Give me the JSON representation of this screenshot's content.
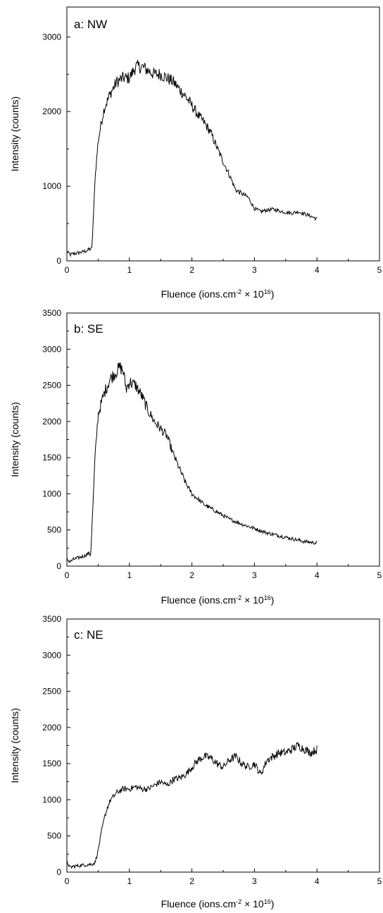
{
  "chart_data": [
    {
      "type": "line",
      "title": "a: NW",
      "xlabel": "Fluence (ions.cm",
      "xlabel_exp": "-2",
      "xlabel_mid": " × 10",
      "xlabel_exp2": "16",
      "xlabel_end": ")",
      "ylabel": "Intensity (counts)",
      "xlim": [
        0,
        5
      ],
      "ylim": [
        0,
        3400
      ],
      "xticks": [
        "0",
        "1",
        "2",
        "3",
        "4",
        "5"
      ],
      "yticks": [
        "0",
        "1000",
        "2000",
        "3000"
      ],
      "x": [
        0,
        0.05,
        0.1,
        0.2,
        0.3,
        0.35,
        0.4,
        0.43,
        0.45,
        0.5,
        0.55,
        0.6,
        0.7,
        0.8,
        0.9,
        1.0,
        1.1,
        1.2,
        1.3,
        1.4,
        1.5,
        1.6,
        1.7,
        1.8,
        1.9,
        2.0,
        2.1,
        2.2,
        2.3,
        2.4,
        2.5,
        2.6,
        2.7,
        2.8,
        2.9,
        3.0,
        3.1,
        3.2,
        3.3,
        3.4,
        3.5,
        3.6,
        3.7,
        3.8,
        3.9,
        4.0
      ],
      "series": [
        {
          "values": [
            130,
            80,
            95,
            110,
            130,
            150,
            170,
            700,
            1100,
            1600,
            1850,
            2050,
            2250,
            2400,
            2450,
            2450,
            2600,
            2600,
            2550,
            2500,
            2500,
            2450,
            2400,
            2300,
            2200,
            2080,
            1950,
            1850,
            1720,
            1520,
            1330,
            1150,
            950,
            900,
            850,
            700,
            660,
            680,
            690,
            670,
            650,
            640,
            660,
            630,
            600,
            560
          ]
        }
      ]
    },
    {
      "type": "line",
      "title": "b: SE",
      "xlabel": "Fluence (ions.cm",
      "xlabel_exp": "-2",
      "xlabel_mid": " × 10",
      "xlabel_exp2": "16",
      "xlabel_end": ")",
      "ylabel": "Intensity (counts)",
      "xlim": [
        0,
        5
      ],
      "ylim": [
        0,
        3500
      ],
      "xticks": [
        "0",
        "1",
        "2",
        "3",
        "4",
        "5"
      ],
      "yticks": [
        "0",
        "500",
        "1000",
        "1500",
        "2000",
        "2500",
        "3000",
        "3500"
      ],
      "x": [
        0,
        0.05,
        0.1,
        0.2,
        0.3,
        0.35,
        0.38,
        0.42,
        0.45,
        0.5,
        0.55,
        0.6,
        0.7,
        0.8,
        0.85,
        0.9,
        0.95,
        1.0,
        1.1,
        1.2,
        1.3,
        1.4,
        1.5,
        1.6,
        1.7,
        1.8,
        1.9,
        2.0,
        2.2,
        2.4,
        2.6,
        2.8,
        3.0,
        3.2,
        3.4,
        3.6,
        3.8,
        4.0
      ],
      "series": [
        {
          "values": [
            100,
            60,
            90,
            120,
            150,
            180,
            150,
            900,
            1500,
            2100,
            2250,
            2400,
            2600,
            2700,
            2750,
            2700,
            2450,
            2550,
            2500,
            2350,
            2150,
            2000,
            1900,
            1800,
            1550,
            1350,
            1150,
            1000,
            850,
            750,
            650,
            580,
            520,
            460,
            420,
            380,
            340,
            320
          ]
        }
      ]
    },
    {
      "type": "line",
      "title": "c: NE",
      "xlabel": "Fluence (ions.cm",
      "xlabel_exp": "-2",
      "xlabel_mid": " × 10",
      "xlabel_exp2": "16",
      "xlabel_end": ")",
      "ylabel": "Intensity (counts)",
      "xlim": [
        0,
        5
      ],
      "ylim": [
        0,
        3500
      ],
      "xticks": [
        "0",
        "1",
        "2",
        "3",
        "4",
        "5"
      ],
      "yticks": [
        "0",
        "500",
        "1000",
        "1500",
        "2000",
        "2500",
        "3000",
        "3500"
      ],
      "x": [
        0,
        0.05,
        0.1,
        0.2,
        0.3,
        0.4,
        0.45,
        0.5,
        0.55,
        0.6,
        0.65,
        0.7,
        0.8,
        0.9,
        1.0,
        1.1,
        1.2,
        1.3,
        1.4,
        1.5,
        1.6,
        1.7,
        1.8,
        1.9,
        2.0,
        2.1,
        2.2,
        2.3,
        2.4,
        2.5,
        2.6,
        2.7,
        2.8,
        2.9,
        3.0,
        3.1,
        3.2,
        3.3,
        3.4,
        3.5,
        3.6,
        3.7,
        3.8,
        3.9,
        4.0
      ],
      "series": [
        {
          "values": [
            150,
            60,
            80,
            90,
            100,
            110,
            130,
            300,
            550,
            750,
            900,
            1000,
            1100,
            1150,
            1150,
            1180,
            1150,
            1150,
            1200,
            1250,
            1200,
            1280,
            1300,
            1350,
            1450,
            1550,
            1600,
            1580,
            1500,
            1450,
            1550,
            1600,
            1500,
            1450,
            1500,
            1350,
            1550,
            1600,
            1650,
            1650,
            1700,
            1750,
            1700,
            1650,
            1700
          ]
        }
      ]
    }
  ]
}
